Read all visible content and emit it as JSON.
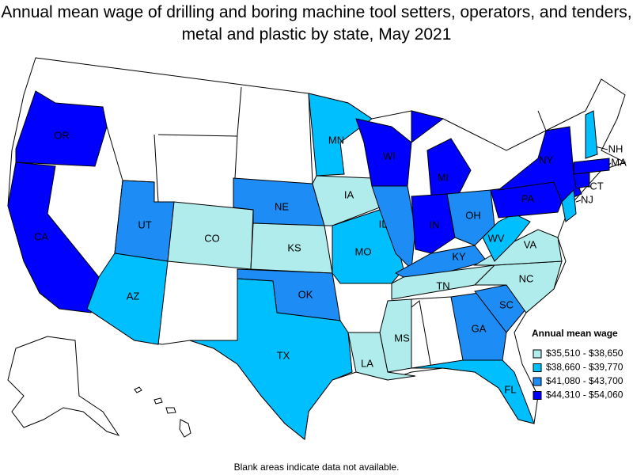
{
  "header": {
    "title": "Annual mean wage of drilling and boring machine tool setters, operators, and tenders, metal and plastic by state, May 2021"
  },
  "legend": {
    "title": "Annual mean wage",
    "entries": [
      {
        "label": "$35,510 - $38,650",
        "color": "#b0eceb"
      },
      {
        "label": "$38,660 - $39,770",
        "color": "#00bfff"
      },
      {
        "label": "$41,080 - $43,700",
        "color": "#1e8cf5"
      },
      {
        "label": "$44,310 - $54,060",
        "color": "#0000ff"
      }
    ]
  },
  "states": [
    {
      "label": "OR",
      "class": 3
    },
    {
      "label": "CA",
      "class": 3
    },
    {
      "label": "UT",
      "class": 2
    },
    {
      "label": "AZ",
      "class": 1
    },
    {
      "label": "CO",
      "class": 0
    },
    {
      "label": "NE",
      "class": 2
    },
    {
      "label": "KS",
      "class": 0
    },
    {
      "label": "OK",
      "class": 2
    },
    {
      "label": "TX",
      "class": 1
    },
    {
      "label": "MN",
      "class": 1
    },
    {
      "label": "IA",
      "class": 0
    },
    {
      "label": "MO",
      "class": 1
    },
    {
      "label": "WI",
      "class": 3
    },
    {
      "label": "IL",
      "class": 2
    },
    {
      "label": "MI",
      "class": 3
    },
    {
      "label": "IN",
      "class": 3
    },
    {
      "label": "OH",
      "class": 2
    },
    {
      "label": "KY",
      "class": 2
    },
    {
      "label": "TN",
      "class": 0
    },
    {
      "label": "MS",
      "class": 0
    },
    {
      "label": "LA",
      "class": 0
    },
    {
      "label": "GA",
      "class": 2
    },
    {
      "label": "SC",
      "class": 2
    },
    {
      "label": "FL",
      "class": 1
    },
    {
      "label": "NC",
      "class": 0
    },
    {
      "label": "VA",
      "class": 0
    },
    {
      "label": "WV",
      "class": 1
    },
    {
      "label": "PA",
      "class": 3
    },
    {
      "label": "NY",
      "class": 3
    },
    {
      "label": "NJ",
      "class": 1
    },
    {
      "label": "MA",
      "class": 3
    },
    {
      "label": "CT",
      "class": 3
    },
    {
      "label": "NH",
      "class": 1
    }
  ],
  "footer": {
    "note": "Blank areas indicate data not available."
  }
}
